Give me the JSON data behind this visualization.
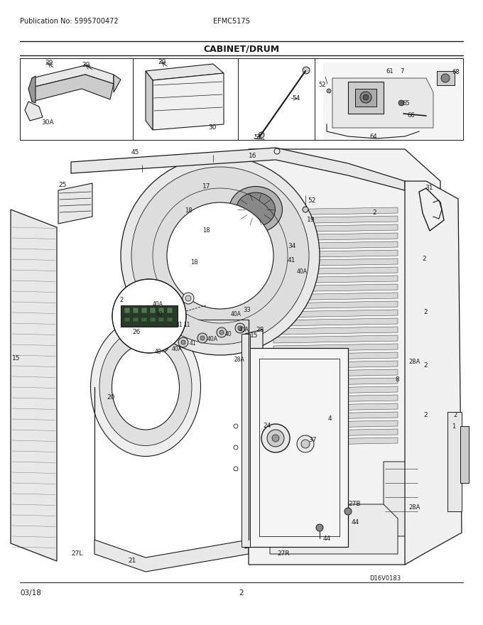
{
  "title": "CABINET/DRUM",
  "pub_no": "Publication No: 5995700472",
  "model": "EFMC517S",
  "date": "03/18",
  "page": "2",
  "diagram_code": "D16V0183",
  "bg_color": "#ffffff",
  "line_color": "#1a1a1a",
  "gray_light": "#e8e8e8",
  "gray_mid": "#cccccc",
  "gray_dark": "#999999"
}
